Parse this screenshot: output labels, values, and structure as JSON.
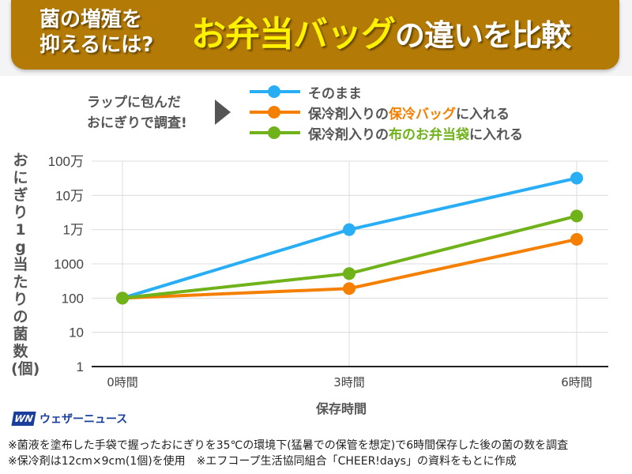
{
  "header": {
    "subtitle_line1": "菌の増殖を",
    "subtitle_line2": "抑えるには?",
    "title_highlight": "お弁当バッグ",
    "title_rest": "の違いを比較"
  },
  "intro": {
    "line1": "ラップに包んだ",
    "line2": "おにぎりで調査!"
  },
  "legend": [
    {
      "prefix": "そのまま",
      "highlight": "",
      "suffix": "",
      "color": "#29aef5"
    },
    {
      "prefix": "保冷剤入りの",
      "highlight": "保冷バッグ",
      "suffix": "に入れる",
      "color": "#f57f00"
    },
    {
      "prefix": "保冷剤入りの",
      "highlight": "布のお弁当袋",
      "suffix": "に入れる",
      "color": "#6fb21a"
    }
  ],
  "chart_data": {
    "type": "line",
    "title": "お弁当バッグの違いを比較",
    "xlabel": "保存時間",
    "ylabel": "おにぎり1g当たりの菌数(個)",
    "yscale": "log",
    "ylim": [
      1,
      1000000
    ],
    "grid": true,
    "legend_position": "top",
    "categories": [
      "0時間",
      "3時間",
      "6時間"
    ],
    "x": [
      0,
      3,
      6
    ],
    "yticks": [
      1,
      10,
      100,
      1000,
      10000,
      100000,
      1000000
    ],
    "ytick_labels": [
      "1",
      "10",
      "100",
      "1000",
      "1万",
      "10万",
      "100万"
    ],
    "series": [
      {
        "name": "そのまま",
        "color": "#29aef5",
        "values": [
          100,
          10000,
          320000
        ]
      },
      {
        "name": "保冷剤入りの保冷バッグに入れる",
        "color": "#f57f00",
        "values": [
          100,
          190,
          5200
        ]
      },
      {
        "name": "保冷剤入りの布のお弁当袋に入れる",
        "color": "#6fb21a",
        "values": [
          100,
          520,
          25000
        ]
      }
    ]
  },
  "branding": {
    "logo_mark": "WN",
    "logo_text": "ウェザーニュース"
  },
  "notes": [
    "※菌液を塗布した手袋で握ったおにぎりを35℃の環境下(猛暑での保管を想定)で6時間保存した後の菌の数を調査",
    "※保冷剤は12cm×9cm(1個)を使用　※エフコープ生活協同組合「CHEER!days」の資料をもとに作成"
  ]
}
